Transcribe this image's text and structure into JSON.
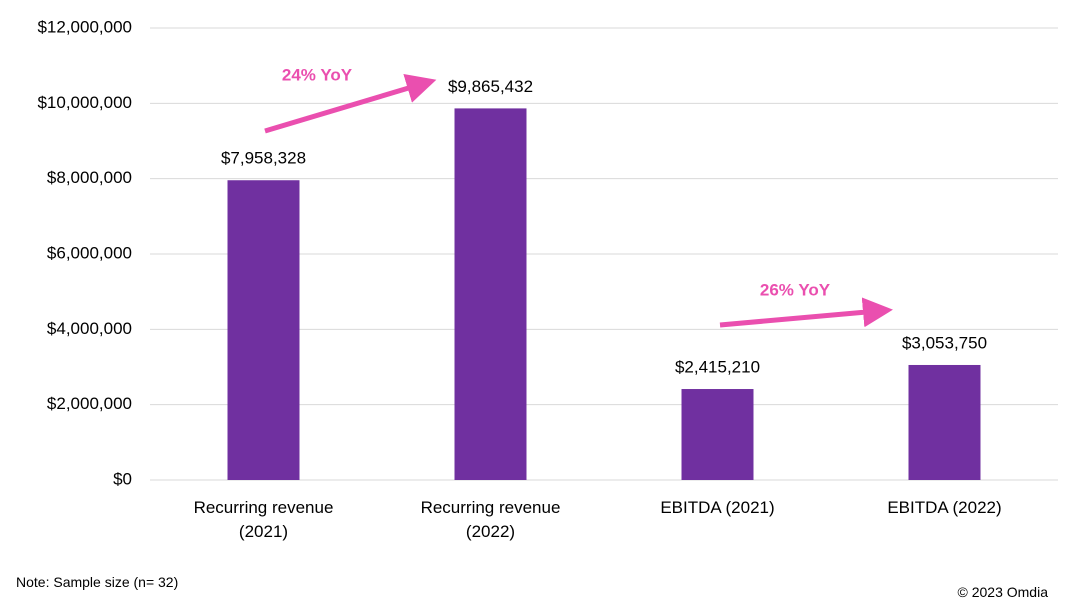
{
  "chart_data": {
    "type": "bar",
    "categories": [
      "Recurring revenue (2021)",
      "Recurring revenue (2022)",
      "EBITDA (2021)",
      "EBITDA (2022)"
    ],
    "values": [
      7958328,
      9865432,
      2415210,
      3053750
    ],
    "value_labels": [
      "$7,958,328",
      "$9,865,432",
      "$2,415,210",
      "$3,053,750"
    ],
    "color": "#7030a0",
    "ylim": [
      0,
      12000000
    ],
    "yticks": [
      {
        "value": 0,
        "label": "$0"
      },
      {
        "value": 2000000,
        "label": "$2,000,000"
      },
      {
        "value": 4000000,
        "label": "$4,000,000"
      },
      {
        "value": 6000000,
        "label": "$6,000,000"
      },
      {
        "value": 8000000,
        "label": "$8,000,000"
      },
      {
        "value": 10000000,
        "label": "$10,000,000"
      },
      {
        "value": 12000000,
        "label": "$12,000,000"
      }
    ],
    "grid": true,
    "annotations": [
      "24% YoY",
      "26% YoY"
    ],
    "note": "Note: Sample size (n= 32)",
    "source": "© 2023 Omdia"
  }
}
